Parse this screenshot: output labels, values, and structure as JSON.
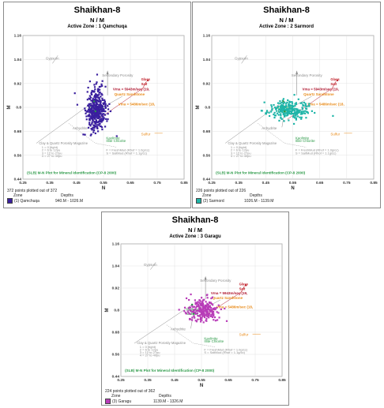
{
  "charts": [
    {
      "title": "Shaikhan-8",
      "subtitle": "N / M",
      "zone_label": "Active Zone : 1 Qamchuqa",
      "footer_points": "372 points plotted out of 372",
      "zone_header": "Zone",
      "depth_header": "Depths",
      "zone_name": "(1) Qamchuqa",
      "depth_range": "940.M - 1026.M",
      "swatch_color": "#3a1f9e"
    },
    {
      "title": "Shaikhan-8",
      "subtitle": "N / M",
      "zone_label": "Active Zone : 2 Sarmord",
      "footer_points": "226 points plotted out of 226",
      "zone_header": "Zone",
      "depth_header": "Depths",
      "zone_name": "(2) Sarmord",
      "depth_range": "1026.M - 1139.M",
      "swatch_color": "#1fb5a8"
    },
    {
      "title": "Shaikhan-8",
      "subtitle": "N / M",
      "zone_label": "Active Zone : 3 Garagu",
      "footer_points": "224 points plotted out of 362",
      "zone_header": "Zone",
      "depth_header": "Depths",
      "zone_name": "(3) Garagu",
      "depth_range": "1139.M - 1326.M",
      "swatch_color": "#b83cb8"
    }
  ],
  "chart_data": [
    {
      "type": "scatter",
      "xlabel": "N",
      "ylabel": "M",
      "xlim": [
        0.25,
        0.85
      ],
      "ylim": [
        0.44,
        1.16
      ],
      "xticks": [
        "0.25",
        "0.35",
        "0.45",
        "0.55",
        "0.65",
        "0.75",
        "0.85"
      ],
      "yticks": [
        "0.44",
        "0.56",
        "0.68",
        "0.8",
        "0.92",
        "1.04",
        "1.16"
      ],
      "point_color": "#3a1f9e",
      "cluster": {
        "cx": 0.525,
        "cy": 0.79,
        "sx": 0.02,
        "sy": 0.055,
        "n": 372,
        "seed": 11
      },
      "series": [
        {
          "name": "(1) Qamchuqa",
          "values": []
        }
      ]
    },
    {
      "type": "scatter",
      "xlabel": "N",
      "ylabel": "M",
      "xlim": [
        0.25,
        0.85
      ],
      "ylim": [
        0.44,
        1.16
      ],
      "xticks": [
        "0.25",
        "0.35",
        "0.45",
        "0.55",
        "0.65",
        "0.75",
        "0.85"
      ],
      "yticks": [
        "0.44",
        "0.56",
        "0.68",
        "0.8",
        "0.92",
        "1.04",
        "1.16"
      ],
      "point_color": "#1fb5a8",
      "cluster": {
        "cx": 0.535,
        "cy": 0.79,
        "sx": 0.04,
        "sy": 0.025,
        "n": 226,
        "seed": 23
      },
      "series": [
        {
          "name": "(2) Sarmord",
          "values": []
        }
      ]
    },
    {
      "type": "scatter",
      "xlabel": "N",
      "ylabel": "M",
      "xlim": [
        0.25,
        0.85
      ],
      "ylim": [
        0.44,
        1.16
      ],
      "xticks": [
        "0.25",
        "0.35",
        "0.45",
        "0.55",
        "0.65",
        "0.75",
        "0.85"
      ],
      "yticks": [
        "0.44",
        "0.56",
        "0.68",
        "0.8",
        "0.92",
        "1.04",
        "1.16"
      ],
      "point_color": "#b83cb8",
      "cluster": {
        "cx": 0.555,
        "cy": 0.8,
        "sx": 0.03,
        "sy": 0.03,
        "n": 224,
        "seed": 37
      },
      "series": [
        {
          "name": "(3) Garagu",
          "values": []
        }
      ]
    }
  ],
  "overlay": {
    "gypsum": "Gypsum",
    "salt": "Salt",
    "secondary_porosity": "Secondary Porosity",
    "vma_upper": "Vma = 5943m/sec (19,",
    "quartz": "Quartz Sandstone",
    "vma_lower": "Vma = 5486m/sec (18,",
    "dolomite": "Dolomite",
    "calcite": "Calcite",
    "anhydrite": "Anhydrite",
    "sulfur": "Sulfur",
    "kaolinite": "Kaolinite",
    "illite": "Illite",
    "chlorite": "Chlorite",
    "clay_porosity": "Clay & Quartz Porosity Magazine",
    "legend_1": "1 = 0 (tight)",
    "legend_2": "2 = 6 to 12pu",
    "legend_3": "3 = 12 to 27pu",
    "legend_4": "4 = 27 to 40pu",
    "fresh_mud": "F = FreshMud (Rhof = 1.0g/cc)",
    "salt_mud": "S = SaltMud (Rhof = 1.1g/cc)",
    "footnote": "(SLB) M-N Plot for Mineral Identification (CP-8 2000)"
  },
  "colors": {
    "salt_red": "#c0202a",
    "vma_red": "#b01830",
    "quartz_orange": "#e88a18",
    "mineral_green": "#2c9a48",
    "overlay_gray": "#8c8c8c"
  }
}
